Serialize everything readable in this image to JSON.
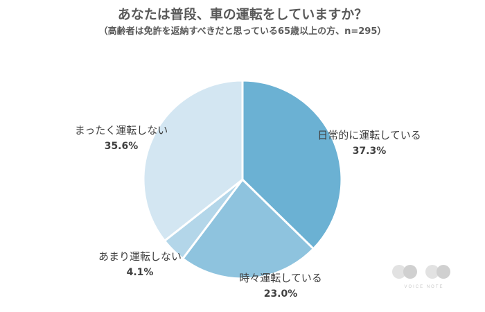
{
  "chart_data": {
    "type": "pie",
    "title": "あなたは普段、車の運転をしていますか？",
    "subtitle": "（高齢者は免許を返納すべきだと思っている65歳以上の方、n=295）",
    "slices": [
      {
        "label": "日常的に運転している",
        "value": 37.3,
        "value_label": "37.3%",
        "color": "#6bb1d3"
      },
      {
        "label": "時々運転している",
        "value": 23.0,
        "value_label": "23.0%",
        "color": "#8ec3de"
      },
      {
        "label": "あまり運転しない",
        "value": 4.1,
        "value_label": "4.1%",
        "color": "#b3d6e9"
      },
      {
        "label": "まったく運転しない",
        "value": 35.6,
        "value_label": "35.6%",
        "color": "#d3e6f2"
      }
    ],
    "start": "12 o'clock",
    "direction": "clockwise"
  },
  "watermark": {
    "text": "VOICE NOTE"
  }
}
